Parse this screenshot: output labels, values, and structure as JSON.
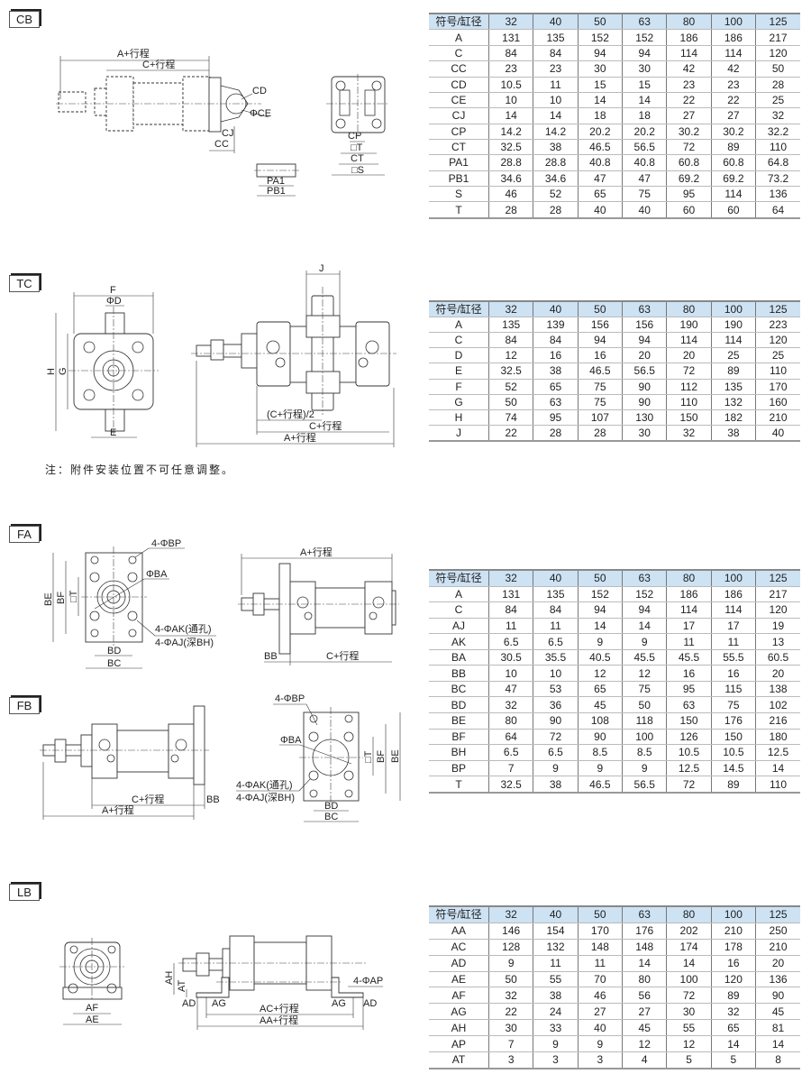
{
  "cb": {
    "tag": "CB",
    "dim": {
      "a": "A+行程",
      "c": "C+行程",
      "cd": "CD",
      "ce": "ΦCE",
      "cj": "CJ",
      "cc": "CC",
      "pa1": "PA1",
      "pb1": "PB1",
      "cp": "CP",
      "t": "□T",
      "ct": "CT",
      "s": "□S"
    },
    "table": {
      "header": [
        "符号/缸径",
        "32",
        "40",
        "50",
        "63",
        "80",
        "100",
        "125"
      ],
      "rows": [
        [
          "A",
          "131",
          "135",
          "152",
          "152",
          "186",
          "186",
          "217"
        ],
        [
          "C",
          "84",
          "84",
          "94",
          "94",
          "114",
          "114",
          "120"
        ],
        [
          "CC",
          "23",
          "23",
          "30",
          "30",
          "42",
          "42",
          "50"
        ],
        [
          "CD",
          "10.5",
          "11",
          "15",
          "15",
          "23",
          "23",
          "28"
        ],
        [
          "CE",
          "10",
          "10",
          "14",
          "14",
          "22",
          "22",
          "25"
        ],
        [
          "CJ",
          "14",
          "14",
          "18",
          "18",
          "27",
          "27",
          "32"
        ],
        [
          "CP",
          "14.2",
          "14.2",
          "20.2",
          "20.2",
          "30.2",
          "30.2",
          "32.2"
        ],
        [
          "CT",
          "32.5",
          "38",
          "46.5",
          "56.5",
          "72",
          "89",
          "110"
        ],
        [
          "PA1",
          "28.8",
          "28.8",
          "40.8",
          "40.8",
          "60.8",
          "60.8",
          "64.8"
        ],
        [
          "PB1",
          "34.6",
          "34.6",
          "47",
          "47",
          "69.2",
          "69.2",
          "73.2"
        ],
        [
          "S",
          "46",
          "52",
          "65",
          "75",
          "95",
          "114",
          "136"
        ],
        [
          "T",
          "28",
          "28",
          "40",
          "40",
          "60",
          "60",
          "64"
        ]
      ]
    }
  },
  "tc": {
    "tag": "TC",
    "dim": {
      "f": "F",
      "d": "ΦD",
      "h": "H",
      "g": "G",
      "e": "E",
      "j": "J",
      "half": "(C+行程)/2",
      "c": "C+行程",
      "a": "A+行程"
    },
    "note": "注：附件安装位置不可任意调整。",
    "table": {
      "header": [
        "符号/缸径",
        "32",
        "40",
        "50",
        "63",
        "80",
        "100",
        "125"
      ],
      "rows": [
        [
          "A",
          "135",
          "139",
          "156",
          "156",
          "190",
          "190",
          "223"
        ],
        [
          "C",
          "84",
          "84",
          "94",
          "94",
          "114",
          "114",
          "120"
        ],
        [
          "D",
          "12",
          "16",
          "16",
          "20",
          "20",
          "25",
          "25"
        ],
        [
          "E",
          "32.5",
          "38",
          "46.5",
          "56.5",
          "72",
          "89",
          "110"
        ],
        [
          "F",
          "52",
          "65",
          "75",
          "90",
          "112",
          "135",
          "170"
        ],
        [
          "G",
          "50",
          "63",
          "75",
          "90",
          "110",
          "132",
          "160"
        ],
        [
          "H",
          "74",
          "95",
          "107",
          "130",
          "150",
          "182",
          "210"
        ],
        [
          "J",
          "22",
          "28",
          "28",
          "30",
          "32",
          "38",
          "40"
        ]
      ]
    }
  },
  "fa": {
    "tag": "FA",
    "dim": {
      "bp": "4-ΦBP",
      "ba": "ΦBA",
      "be": "BE",
      "bf": "BF",
      "t": "□T",
      "ak": "4-ΦAK(通孔)",
      "aj": "4-ΦAJ(深BH)",
      "bd": "BD",
      "bc": "BC",
      "a": "A+行程",
      "bb": "BB",
      "c": "C+行程"
    },
    "table": {
      "header": [
        "符号/缸径",
        "32",
        "40",
        "50",
        "63",
        "80",
        "100",
        "125"
      ],
      "rows": [
        [
          "A",
          "131",
          "135",
          "152",
          "152",
          "186",
          "186",
          "217"
        ],
        [
          "C",
          "84",
          "84",
          "94",
          "94",
          "114",
          "114",
          "120"
        ],
        [
          "AJ",
          "11",
          "11",
          "14",
          "14",
          "17",
          "17",
          "19"
        ],
        [
          "AK",
          "6.5",
          "6.5",
          "9",
          "9",
          "11",
          "11",
          "13"
        ],
        [
          "BA",
          "30.5",
          "35.5",
          "40.5",
          "45.5",
          "45.5",
          "55.5",
          "60.5"
        ],
        [
          "BB",
          "10",
          "10",
          "12",
          "12",
          "16",
          "16",
          "20"
        ],
        [
          "BC",
          "47",
          "53",
          "65",
          "75",
          "95",
          "115",
          "138"
        ],
        [
          "BD",
          "32",
          "36",
          "45",
          "50",
          "63",
          "75",
          "102"
        ],
        [
          "BE",
          "80",
          "90",
          "108",
          "118",
          "150",
          "176",
          "216"
        ],
        [
          "BF",
          "64",
          "72",
          "90",
          "100",
          "126",
          "150",
          "180"
        ],
        [
          "BH",
          "6.5",
          "6.5",
          "8.5",
          "8.5",
          "10.5",
          "10.5",
          "12.5"
        ],
        [
          "BP",
          "7",
          "9",
          "9",
          "9",
          "12.5",
          "14.5",
          "14"
        ],
        [
          "T",
          "32.5",
          "38",
          "46.5",
          "56.5",
          "72",
          "89",
          "110"
        ]
      ]
    }
  },
  "fb": {
    "tag": "FB",
    "dim": {
      "c": "C+行程",
      "bb": "BB",
      "a": "A+行程",
      "bp": "4-ΦBP",
      "ba": "ΦBA",
      "t": "□T",
      "bf": "BF",
      "be": "BE",
      "ak": "4-ΦAK(通孔)",
      "aj": "4-ΦAJ(深BH)",
      "bd": "BD",
      "bc": "BC"
    }
  },
  "lb": {
    "tag": "LB",
    "dim": {
      "af": "AF",
      "ae": "AE",
      "ah": "AH",
      "at": "AT",
      "ad": "AD",
      "ag": "AG",
      "ap": "4-ΦAP",
      "ac": "AC+行程",
      "aa": "AA+行程"
    },
    "table": {
      "header": [
        "符号/缸径",
        "32",
        "40",
        "50",
        "63",
        "80",
        "100",
        "125"
      ],
      "rows": [
        [
          "AA",
          "146",
          "154",
          "170",
          "176",
          "202",
          "210",
          "250"
        ],
        [
          "AC",
          "128",
          "132",
          "148",
          "148",
          "174",
          "178",
          "210"
        ],
        [
          "AD",
          "9",
          "11",
          "11",
          "14",
          "14",
          "16",
          "20"
        ],
        [
          "AE",
          "50",
          "55",
          "70",
          "80",
          "100",
          "120",
          "136"
        ],
        [
          "AF",
          "32",
          "38",
          "46",
          "56",
          "72",
          "89",
          "90"
        ],
        [
          "AG",
          "22",
          "24",
          "27",
          "27",
          "30",
          "32",
          "45"
        ],
        [
          "AH",
          "30",
          "33",
          "40",
          "45",
          "55",
          "65",
          "81"
        ],
        [
          "AP",
          "7",
          "9",
          "9",
          "12",
          "12",
          "14",
          "14"
        ],
        [
          "AT",
          "3",
          "3",
          "3",
          "4",
          "5",
          "5",
          "8"
        ]
      ]
    }
  }
}
